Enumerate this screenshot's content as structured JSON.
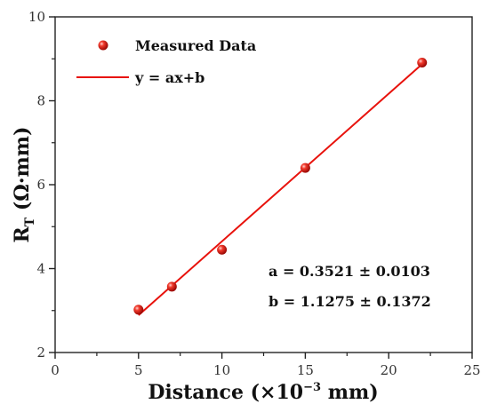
{
  "chart_data": {
    "type": "scatter",
    "xlabel": {
      "main": "Distance (×10",
      "sup": "−3",
      "unit": " mm)"
    },
    "ylabel": {
      "main": "R",
      "sub": "T",
      "unit": " (Ω·mm)"
    },
    "xlim": [
      0,
      25
    ],
    "ylim": [
      2,
      10
    ],
    "xticks": [
      0,
      5,
      10,
      15,
      20,
      25
    ],
    "yticks": [
      2,
      4,
      6,
      8,
      10
    ],
    "x_tick_labels": [
      "0",
      "5",
      "10",
      "15",
      "20",
      "25"
    ],
    "y_tick_labels": [
      "2",
      "4",
      "6",
      "8",
      "10"
    ],
    "grid": false,
    "legend_position": "top-left",
    "series": [
      {
        "name": "Measured Data",
        "kind": "scatter",
        "color": "#e8120c",
        "x": [
          5,
          7,
          10,
          15,
          22
        ],
        "y": [
          3.02,
          3.57,
          4.45,
          6.4,
          8.91
        ]
      },
      {
        "name": "y = ax+b",
        "kind": "line",
        "color": "#e8120c",
        "x": [
          5,
          22
        ],
        "y": [
          2.888,
          8.874
        ]
      }
    ],
    "annotations": [
      "a = 0.3521 ± 0.0103",
      "b = 1.1275 ± 0.1372"
    ]
  }
}
